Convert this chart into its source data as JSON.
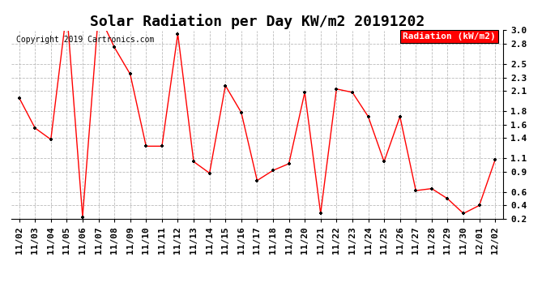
{
  "title": "Solar Radiation per Day KW/m2 20191202",
  "copyright_text": "Copyright 2019 Cartronics.com",
  "legend_label": "Radiation (kW/m2)",
  "x_labels": [
    "11/02",
    "11/03",
    "11/04",
    "11/05",
    "11/06",
    "11/07",
    "11/08",
    "11/09",
    "11/10",
    "11/11",
    "11/12",
    "11/13",
    "11/14",
    "11/15",
    "11/16",
    "11/17",
    "11/18",
    "11/19",
    "11/20",
    "11/21",
    "11/22",
    "11/23",
    "11/24",
    "11/25",
    "11/26",
    "11/27",
    "11/28",
    "11/29",
    "11/30",
    "12/01",
    "12/02"
  ],
  "y_values": [
    2.0,
    1.55,
    1.38,
    3.3,
    0.23,
    3.25,
    2.75,
    2.35,
    1.28,
    1.28,
    2.95,
    1.05,
    0.88,
    2.18,
    1.78,
    0.77,
    0.92,
    1.02,
    2.08,
    0.28,
    2.13,
    2.08,
    1.72,
    1.05,
    1.72,
    0.62,
    0.65,
    0.5,
    0.28,
    0.4,
    1.08
  ],
  "ylim_min": 0.2,
  "ylim_max": 3.0,
  "yticks": [
    3.0,
    2.8,
    2.5,
    2.3,
    2.1,
    1.8,
    1.6,
    1.4,
    1.1,
    0.9,
    0.6,
    0.4,
    0.2
  ],
  "line_color": "red",
  "marker_color": "black",
  "background_color": "#ffffff",
  "grid_color": "#aaaaaa",
  "title_fontsize": 13,
  "tick_fontsize": 8,
  "copyright_fontsize": 7,
  "legend_fontsize": 8
}
